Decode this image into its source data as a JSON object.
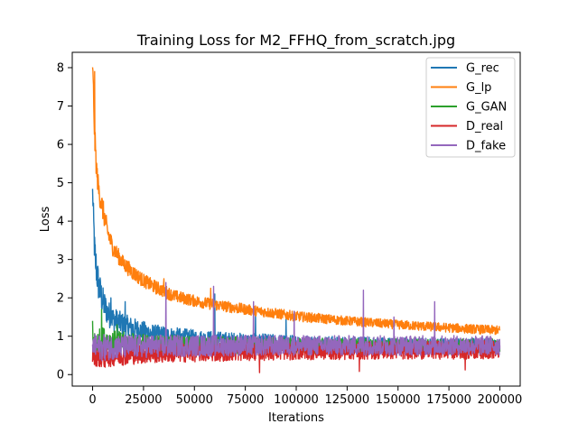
{
  "chart_data": {
    "type": "line",
    "title": "Training Loss for M2_FFHQ_from_scratch.jpg",
    "xlabel": "Iterations",
    "ylabel": "Loss",
    "xlim": [
      -10000,
      210000
    ],
    "ylim": [
      -0.3,
      8.4
    ],
    "xticks": [
      0,
      25000,
      50000,
      75000,
      100000,
      125000,
      150000,
      175000,
      200000
    ],
    "yticks": [
      0,
      1,
      2,
      3,
      4,
      5,
      6,
      7,
      8
    ],
    "legend_position": "top-right",
    "grid": false,
    "series": [
      {
        "name": "G_rec",
        "color": "#1f77b4",
        "x": [
          0,
          1000,
          2000,
          3000,
          5000,
          7500,
          10000,
          15000,
          20000,
          25000,
          30000,
          40000,
          50000,
          60000,
          75000,
          100000,
          125000,
          150000,
          175000,
          200000
        ],
        "y": [
          4.75,
          3.2,
          2.7,
          2.3,
          1.9,
          1.6,
          1.45,
          1.3,
          1.2,
          1.12,
          1.05,
          0.98,
          0.93,
          0.9,
          0.86,
          0.82,
          0.79,
          0.77,
          0.75,
          0.74
        ],
        "spread": [
          0.3,
          0.5,
          0.5,
          0.45,
          0.4,
          0.35,
          0.32,
          0.3,
          0.28,
          0.27,
          0.26,
          0.25,
          0.24,
          0.23,
          0.22,
          0.21,
          0.2,
          0.2,
          0.2,
          0.2
        ],
        "spikes": [
          [
            1500,
            2.8
          ],
          [
            4000,
            2.2
          ],
          [
            9000,
            2.0
          ],
          [
            16000,
            1.9
          ],
          [
            60000,
            2.1
          ],
          [
            80000,
            1.7
          ],
          [
            95000,
            1.5
          ]
        ]
      },
      {
        "name": "G_lp",
        "color": "#ff7f0e",
        "x": [
          0,
          500,
          1000,
          2000,
          3000,
          5000,
          7500,
          10000,
          15000,
          20000,
          25000,
          30000,
          40000,
          50000,
          60000,
          75000,
          100000,
          125000,
          150000,
          175000,
          200000
        ],
        "y": [
          8.05,
          7.2,
          6.2,
          5.3,
          4.8,
          4.3,
          3.7,
          3.3,
          2.9,
          2.65,
          2.45,
          2.3,
          2.05,
          1.92,
          1.82,
          1.7,
          1.52,
          1.4,
          1.3,
          1.22,
          1.15
        ],
        "spread": [
          0.1,
          0.4,
          0.4,
          0.3,
          0.3,
          0.3,
          0.25,
          0.22,
          0.2,
          0.2,
          0.18,
          0.18,
          0.16,
          0.15,
          0.15,
          0.14,
          0.13,
          0.12,
          0.12,
          0.12,
          0.12
        ],
        "spikes": [
          [
            1000,
            7.9
          ],
          [
            35000,
            2.5
          ],
          [
            58000,
            2.25
          ]
        ]
      },
      {
        "name": "G_GAN",
        "color": "#2ca02c",
        "x": [
          0,
          5000,
          10000,
          25000,
          50000,
          75000,
          100000,
          125000,
          150000,
          175000,
          200000
        ],
        "y": [
          0.8,
          0.9,
          0.85,
          0.8,
          0.78,
          0.76,
          0.75,
          0.74,
          0.74,
          0.73,
          0.73
        ],
        "spread": [
          0.3,
          0.35,
          0.3,
          0.25,
          0.22,
          0.22,
          0.2,
          0.2,
          0.2,
          0.2,
          0.2
        ],
        "spikes": [
          [
            0,
            1.4
          ],
          [
            4500,
            1.7
          ],
          [
            12000,
            1.3
          ]
        ]
      },
      {
        "name": "D_real",
        "color": "#d62728",
        "x": [
          0,
          5000,
          10000,
          25000,
          50000,
          75000,
          100000,
          125000,
          150000,
          175000,
          200000
        ],
        "y": [
          0.55,
          0.45,
          0.5,
          0.55,
          0.58,
          0.6,
          0.62,
          0.63,
          0.64,
          0.64,
          0.65
        ],
        "spread": [
          0.3,
          0.3,
          0.28,
          0.26,
          0.25,
          0.24,
          0.24,
          0.24,
          0.24,
          0.24,
          0.24
        ],
        "spikes": [
          [
            82000,
            0.05
          ],
          [
            131000,
            0.08
          ],
          [
            183000,
            0.12
          ]
        ]
      },
      {
        "name": "D_fake",
        "color": "#9467bd",
        "x": [
          0,
          5000,
          10000,
          25000,
          50000,
          75000,
          100000,
          125000,
          150000,
          175000,
          200000
        ],
        "y": [
          0.75,
          0.7,
          0.72,
          0.74,
          0.75,
          0.76,
          0.76,
          0.76,
          0.76,
          0.76,
          0.76
        ],
        "spread": [
          0.3,
          0.35,
          0.32,
          0.3,
          0.28,
          0.27,
          0.26,
          0.26,
          0.26,
          0.26,
          0.26
        ],
        "spikes": [
          [
            36000,
            2.4
          ],
          [
            59500,
            2.3
          ],
          [
            79000,
            1.9
          ],
          [
            99000,
            1.65
          ],
          [
            133000,
            2.2
          ],
          [
            148000,
            1.5
          ],
          [
            168000,
            1.9
          ]
        ]
      }
    ]
  }
}
